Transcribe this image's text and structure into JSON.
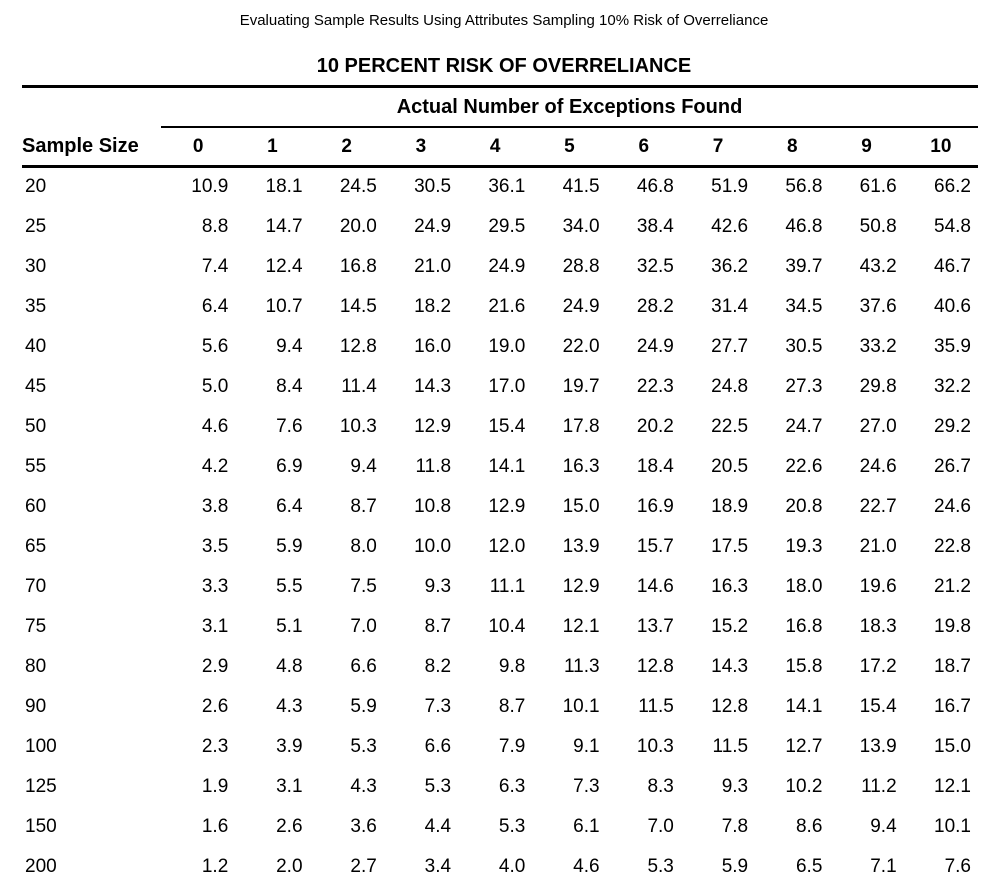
{
  "page": {
    "title": "Evaluating Sample Results Using Attributes Sampling 10% Risk of Overreliance",
    "heading": "10 PERCENT RISK OF OVERRELIANCE"
  },
  "colors": {
    "text": "#000000",
    "background": "#ffffff",
    "rule": "#000000"
  },
  "table": {
    "group_header": "Actual Number of Exceptions Found",
    "row_header_label": "Sample Size",
    "exception_columns": [
      "0",
      "1",
      "2",
      "3",
      "4",
      "5",
      "6",
      "7",
      "8",
      "9",
      "10"
    ],
    "rows": [
      {
        "sample_size": "20",
        "values": [
          "10.9",
          "18.1",
          "24.5",
          "30.5",
          "36.1",
          "41.5",
          "46.8",
          "51.9",
          "56.8",
          "61.6",
          "66.2"
        ]
      },
      {
        "sample_size": "25",
        "values": [
          "8.8",
          "14.7",
          "20.0",
          "24.9",
          "29.5",
          "34.0",
          "38.4",
          "42.6",
          "46.8",
          "50.8",
          "54.8"
        ]
      },
      {
        "sample_size": "30",
        "values": [
          "7.4",
          "12.4",
          "16.8",
          "21.0",
          "24.9",
          "28.8",
          "32.5",
          "36.2",
          "39.7",
          "43.2",
          "46.7"
        ]
      },
      {
        "sample_size": "35",
        "values": [
          "6.4",
          "10.7",
          "14.5",
          "18.2",
          "21.6",
          "24.9",
          "28.2",
          "31.4",
          "34.5",
          "37.6",
          "40.6"
        ]
      },
      {
        "sample_size": "40",
        "values": [
          "5.6",
          "9.4",
          "12.8",
          "16.0",
          "19.0",
          "22.0",
          "24.9",
          "27.7",
          "30.5",
          "33.2",
          "35.9"
        ]
      },
      {
        "sample_size": "45",
        "values": [
          "5.0",
          "8.4",
          "11.4",
          "14.3",
          "17.0",
          "19.7",
          "22.3",
          "24.8",
          "27.3",
          "29.8",
          "32.2"
        ]
      },
      {
        "sample_size": "50",
        "values": [
          "4.6",
          "7.6",
          "10.3",
          "12.9",
          "15.4",
          "17.8",
          "20.2",
          "22.5",
          "24.7",
          "27.0",
          "29.2"
        ]
      },
      {
        "sample_size": "55",
        "values": [
          "4.2",
          "6.9",
          "9.4",
          "11.8",
          "14.1",
          "16.3",
          "18.4",
          "20.5",
          "22.6",
          "24.6",
          "26.7"
        ]
      },
      {
        "sample_size": "60",
        "values": [
          "3.8",
          "6.4",
          "8.7",
          "10.8",
          "12.9",
          "15.0",
          "16.9",
          "18.9",
          "20.8",
          "22.7",
          "24.6"
        ]
      },
      {
        "sample_size": "65",
        "values": [
          "3.5",
          "5.9",
          "8.0",
          "10.0",
          "12.0",
          "13.9",
          "15.7",
          "17.5",
          "19.3",
          "21.0",
          "22.8"
        ]
      },
      {
        "sample_size": "70",
        "values": [
          "3.3",
          "5.5",
          "7.5",
          "9.3",
          "11.1",
          "12.9",
          "14.6",
          "16.3",
          "18.0",
          "19.6",
          "21.2"
        ]
      },
      {
        "sample_size": "75",
        "values": [
          "3.1",
          "5.1",
          "7.0",
          "8.7",
          "10.4",
          "12.1",
          "13.7",
          "15.2",
          "16.8",
          "18.3",
          "19.8"
        ]
      },
      {
        "sample_size": "80",
        "values": [
          "2.9",
          "4.8",
          "6.6",
          "8.2",
          "9.8",
          "11.3",
          "12.8",
          "14.3",
          "15.8",
          "17.2",
          "18.7"
        ]
      },
      {
        "sample_size": "90",
        "values": [
          "2.6",
          "4.3",
          "5.9",
          "7.3",
          "8.7",
          "10.1",
          "11.5",
          "12.8",
          "14.1",
          "15.4",
          "16.7"
        ]
      },
      {
        "sample_size": "100",
        "values": [
          "2.3",
          "3.9",
          "5.3",
          "6.6",
          "7.9",
          "9.1",
          "10.3",
          "11.5",
          "12.7",
          "13.9",
          "15.0"
        ]
      },
      {
        "sample_size": "125",
        "values": [
          "1.9",
          "3.1",
          "4.3",
          "5.3",
          "6.3",
          "7.3",
          "8.3",
          "9.3",
          "10.2",
          "11.2",
          "12.1"
        ]
      },
      {
        "sample_size": "150",
        "values": [
          "1.6",
          "2.6",
          "3.6",
          "4.4",
          "5.3",
          "6.1",
          "7.0",
          "7.8",
          "8.6",
          "9.4",
          "10.1"
        ]
      },
      {
        "sample_size": "200",
        "values": [
          "1.2",
          "2.0",
          "2.7",
          "3.4",
          "4.0",
          "4.6",
          "5.3",
          "5.9",
          "6.5",
          "7.1",
          "7.6"
        ]
      }
    ]
  }
}
